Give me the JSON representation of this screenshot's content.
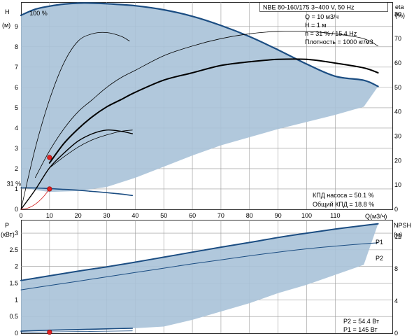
{
  "chart_data": [
    {
      "type": "line",
      "panel": "pump-curves",
      "title_box": "NBE 80-160/175    3~400 V, 50 Hz",
      "info": [
        "Q = 10 м3/ч",
        "H = 1 м",
        "n = 31 % / 15.4 Hz",
        "Плотность = 1000 кг/м3"
      ],
      "eff_info": [
        "КПД насоса = 50.1 %",
        "Общий КПД = 18.8 %"
      ],
      "y_left_label": [
        "H",
        "(м)"
      ],
      "y_right_label": [
        "eta",
        "(%)"
      ],
      "x_label": "Q(м3/ч)",
      "xlim": [
        0,
        130
      ],
      "ylim_left": [
        0,
        10.2
      ],
      "ylim_right": [
        0,
        85
      ],
      "x_ticks": [
        0,
        10,
        20,
        30,
        40,
        50,
        60,
        70,
        80,
        90,
        100,
        110
      ],
      "y_left_ticks": [
        0,
        1,
        2,
        3,
        4,
        5,
        6,
        7,
        8,
        9
      ],
      "y_right_ticks": [
        0,
        10,
        20,
        30,
        40,
        50,
        60,
        70,
        80
      ],
      "speed_labels": [
        {
          "text": "100 %",
          "x": 3,
          "y": 9.55
        },
        {
          "text": "31 %",
          "x": -5,
          "y": 1.15
        }
      ],
      "duty_points": [
        {
          "x": 10,
          "y": 2.55
        },
        {
          "x": 10,
          "y": 1.0
        }
      ],
      "envelope_area": {
        "x": [
          0,
          5,
          10,
          20,
          30,
          40,
          50,
          60,
          70,
          80,
          90,
          100,
          110,
          120,
          125,
          120,
          110,
          100,
          90,
          80,
          70,
          60,
          50,
          40,
          30,
          20,
          10,
          5,
          0
        ],
        "y": [
          9.5,
          9.85,
          10.0,
          10.13,
          10.12,
          10.02,
          9.82,
          9.5,
          9.05,
          8.5,
          7.85,
          7.15,
          6.55,
          6.35,
          6.05,
          5.05,
          4.65,
          4.3,
          3.95,
          3.55,
          3.15,
          2.65,
          2.1,
          1.55,
          1.1,
          0.9,
          0.85,
          0.95,
          1.1
        ]
      },
      "series": [
        {
          "role": "head-100",
          "color": "#1b4d82",
          "width": 2.2,
          "x": [
            0,
            5,
            10,
            15,
            20,
            25,
            30,
            40,
            50,
            60,
            70,
            80,
            90,
            100,
            110,
            120,
            125
          ],
          "y": [
            9.55,
            9.85,
            10.0,
            10.1,
            10.15,
            10.15,
            10.12,
            10.02,
            9.82,
            9.5,
            9.05,
            8.5,
            7.85,
            7.15,
            6.55,
            6.35,
            6.05
          ]
        },
        {
          "role": "head-31",
          "color": "#1b4d82",
          "width": 1.6,
          "x": [
            0,
            5,
            10,
            15,
            20,
            25,
            30,
            35,
            39
          ],
          "y": [
            1.05,
            1.05,
            1.02,
            0.98,
            0.94,
            0.88,
            0.82,
            0.75,
            0.68
          ]
        },
        {
          "role": "eta-pump-100",
          "color": "#000000",
          "width": 0.8,
          "x": [
            5,
            10,
            15,
            20,
            25,
            30,
            35,
            40,
            50,
            60,
            70,
            80,
            90,
            100,
            110,
            120,
            125
          ],
          "y": [
            13,
            24,
            33,
            40,
            45,
            50,
            54,
            57,
            63,
            67,
            70,
            72,
            73,
            73,
            72,
            70,
            67
          ]
        },
        {
          "role": "eta-total-100",
          "color": "#000000",
          "width": 2.0,
          "x": [
            10,
            15,
            20,
            25,
            30,
            35,
            40,
            50,
            60,
            70,
            80,
            90,
            100,
            110,
            120,
            125
          ],
          "y": [
            19,
            27,
            33,
            38,
            42,
            45,
            48,
            53,
            56,
            59,
            60.5,
            61.5,
            61.5,
            60,
            58,
            56
          ]
        },
        {
          "role": "eta-pump-31",
          "color": "#000000",
          "width": 0.8,
          "x": [
            0,
            5,
            10,
            15,
            20,
            25,
            30,
            35,
            38
          ],
          "y": [
            0,
            25,
            45,
            60,
            69,
            72,
            72.5,
            71,
            69
          ]
        },
        {
          "role": "eta-total-31",
          "color": "#000000",
          "width": 1.4,
          "x": [
            0,
            5,
            10,
            15,
            20,
            25,
            30,
            35,
            39
          ],
          "y": [
            0,
            8,
            17,
            23,
            28,
            31,
            32.5,
            32,
            31
          ]
        },
        {
          "role": "eta-aux",
          "color": "#000000",
          "width": 0.8,
          "x": [
            10,
            15,
            20,
            25,
            30,
            35,
            39
          ],
          "y": [
            17,
            21.5,
            25.5,
            28.5,
            30.5,
            32,
            32.5
          ]
        },
        {
          "role": "system-curve",
          "color": "#d22020",
          "width": 0.8,
          "x": [
            0,
            2,
            4,
            6,
            8,
            10
          ],
          "y": [
            0,
            0.04,
            0.16,
            0.36,
            0.64,
            1.0
          ]
        }
      ]
    },
    {
      "type": "line",
      "panel": "power-npsh",
      "y_left_label": [
        "P",
        "(кВт)"
      ],
      "y_right_label": [
        "NPSH",
        "(м)"
      ],
      "xlim": [
        0,
        130
      ],
      "ylim_left": [
        0,
        3.4
      ],
      "ylim_right": [
        0,
        14.1
      ],
      "y_left_ticks": [
        0,
        0.5,
        1,
        1.5,
        2,
        2.5,
        3
      ],
      "y_right_ticks": [
        0,
        4,
        8,
        12
      ],
      "power_info": [
        "P2 = 54.4 Вт",
        "P1 = 145 Вт"
      ],
      "duty_points": [
        {
          "x": 10,
          "y": 0.03
        }
      ],
      "envelope_area": {
        "x": [
          0,
          10,
          20,
          30,
          40,
          50,
          60,
          70,
          80,
          90,
          100,
          110,
          120,
          125,
          120,
          110,
          100,
          90,
          80,
          70,
          60,
          50,
          40,
          30,
          20,
          10,
          0
        ],
        "y": [
          1.58,
          1.72,
          1.86,
          1.99,
          2.13,
          2.28,
          2.43,
          2.58,
          2.72,
          2.87,
          3.0,
          3.12,
          3.23,
          3.28,
          2.05,
          1.75,
          1.45,
          1.2,
          0.9,
          0.65,
          0.4,
          0.2,
          0.15,
          0.12,
          0.1,
          0.08,
          0.06
        ]
      },
      "series": [
        {
          "name": "P1",
          "color": "#1b4d82",
          "width": 2.0,
          "x": [
            0,
            10,
            20,
            30,
            40,
            50,
            60,
            70,
            80,
            90,
            100,
            110,
            120,
            125
          ],
          "y": [
            1.58,
            1.72,
            1.86,
            1.99,
            2.13,
            2.28,
            2.43,
            2.58,
            2.72,
            2.87,
            3.0,
            3.12,
            3.23,
            3.28
          ]
        },
        {
          "name": "P2",
          "color": "#1b4d82",
          "width": 1.0,
          "x": [
            0,
            10,
            20,
            30,
            40,
            50,
            60,
            70,
            80,
            90,
            100,
            110,
            120,
            125
          ],
          "y": [
            1.3,
            1.43,
            1.56,
            1.69,
            1.82,
            1.95,
            2.08,
            2.2,
            2.32,
            2.43,
            2.53,
            2.61,
            2.68,
            2.71
          ]
        },
        {
          "role": "p1-31",
          "color": "#1b4d82",
          "width": 1.6,
          "x": [
            0,
            10,
            20,
            30,
            39
          ],
          "y": [
            0.06,
            0.09,
            0.11,
            0.13,
            0.15
          ]
        },
        {
          "role": "p2-31",
          "color": "#1b4d82",
          "width": 0.8,
          "x": [
            0,
            10,
            20,
            30,
            39
          ],
          "y": [
            0.03,
            0.04,
            0.05,
            0.06,
            0.07
          ]
        }
      ]
    }
  ]
}
